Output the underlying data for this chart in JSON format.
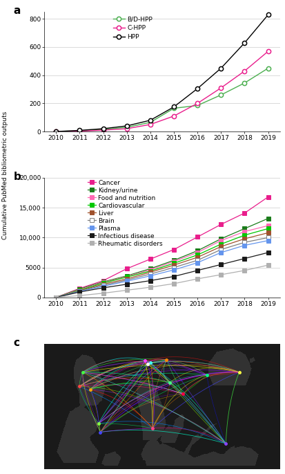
{
  "panel_a": {
    "years": [
      2010,
      2011,
      2012,
      2013,
      2014,
      2015,
      2016,
      2017,
      2018,
      2019
    ],
    "BD_HPP": [
      0,
      5,
      15,
      30,
      65,
      165,
      185,
      260,
      345,
      450
    ],
    "C_HPP": [
      0,
      3,
      10,
      20,
      50,
      110,
      200,
      310,
      430,
      570
    ],
    "HPP": [
      0,
      8,
      20,
      40,
      80,
      175,
      305,
      450,
      630,
      830
    ],
    "colors": {
      "BD_HPP": "#4caf50",
      "C_HPP": "#e91e8c",
      "HPP": "#000000"
    },
    "ylim": [
      0,
      850
    ],
    "yticks": [
      0,
      200,
      400,
      600,
      800
    ],
    "ylabel": "Cumulative PubMed bibliometric outputs",
    "legend": [
      "B/D-HPP",
      "C-HPP",
      "HPP"
    ]
  },
  "panel_b": {
    "years": [
      2010,
      2011,
      2012,
      2013,
      2014,
      2015,
      2016,
      2017,
      2018,
      2019
    ],
    "series": {
      "Cancer": [
        0,
        1500,
        2800,
        4800,
        6400,
        8000,
        10100,
        12200,
        14100,
        16800
      ],
      "Kidney/urine": [
        0,
        1400,
        2600,
        3600,
        4800,
        6200,
        7800,
        9800,
        11500,
        13200
      ],
      "Food and nutrition": [
        0,
        1300,
        2500,
        3500,
        4600,
        6000,
        7500,
        9500,
        11000,
        12000
      ],
      "Cardiovascular": [
        0,
        1200,
        2400,
        3400,
        4400,
        5700,
        7100,
        8900,
        10400,
        11500
      ],
      "Liver": [
        0,
        1100,
        2200,
        3100,
        4200,
        5400,
        6700,
        8500,
        9800,
        10800
      ],
      "Brain": [
        0,
        1050,
        2000,
        2900,
        3900,
        5000,
        6200,
        8000,
        9200,
        10000
      ],
      "Plasma": [
        0,
        1000,
        1850,
        2700,
        3600,
        4600,
        5800,
        7500,
        8700,
        9500
      ],
      "Infectious disease": [
        0,
        900,
        1600,
        2200,
        2800,
        3500,
        4500,
        5500,
        6500,
        7500
      ],
      "Rheumatic disorders": [
        0,
        300,
        700,
        1200,
        1700,
        2300,
        3100,
        3800,
        4500,
        5400
      ]
    },
    "colors": {
      "Cancer": "#e91e8c",
      "Kidney/urine": "#1a7c1a",
      "Food and nutrition": "#ff69b4",
      "Cardiovascular": "#00c800",
      "Liver": "#a0522d",
      "Brain": "#808080",
      "Plasma": "#6495ed",
      "Infectious disease": "#1a1a1a",
      "Rheumatic disorders": "#b0b0b0"
    },
    "ylim": [
      0,
      20000
    ],
    "yticks": [
      0,
      5000,
      10000,
      15000,
      20000
    ],
    "ytick_labels": [
      "0",
      "5000",
      "10,000",
      "15,000",
      "20,000"
    ]
  },
  "panel_labels_fontsize": 11,
  "tick_fontsize": 6.5,
  "legend_fontsize": 6.5,
  "ylabel_fontsize": 6.5
}
